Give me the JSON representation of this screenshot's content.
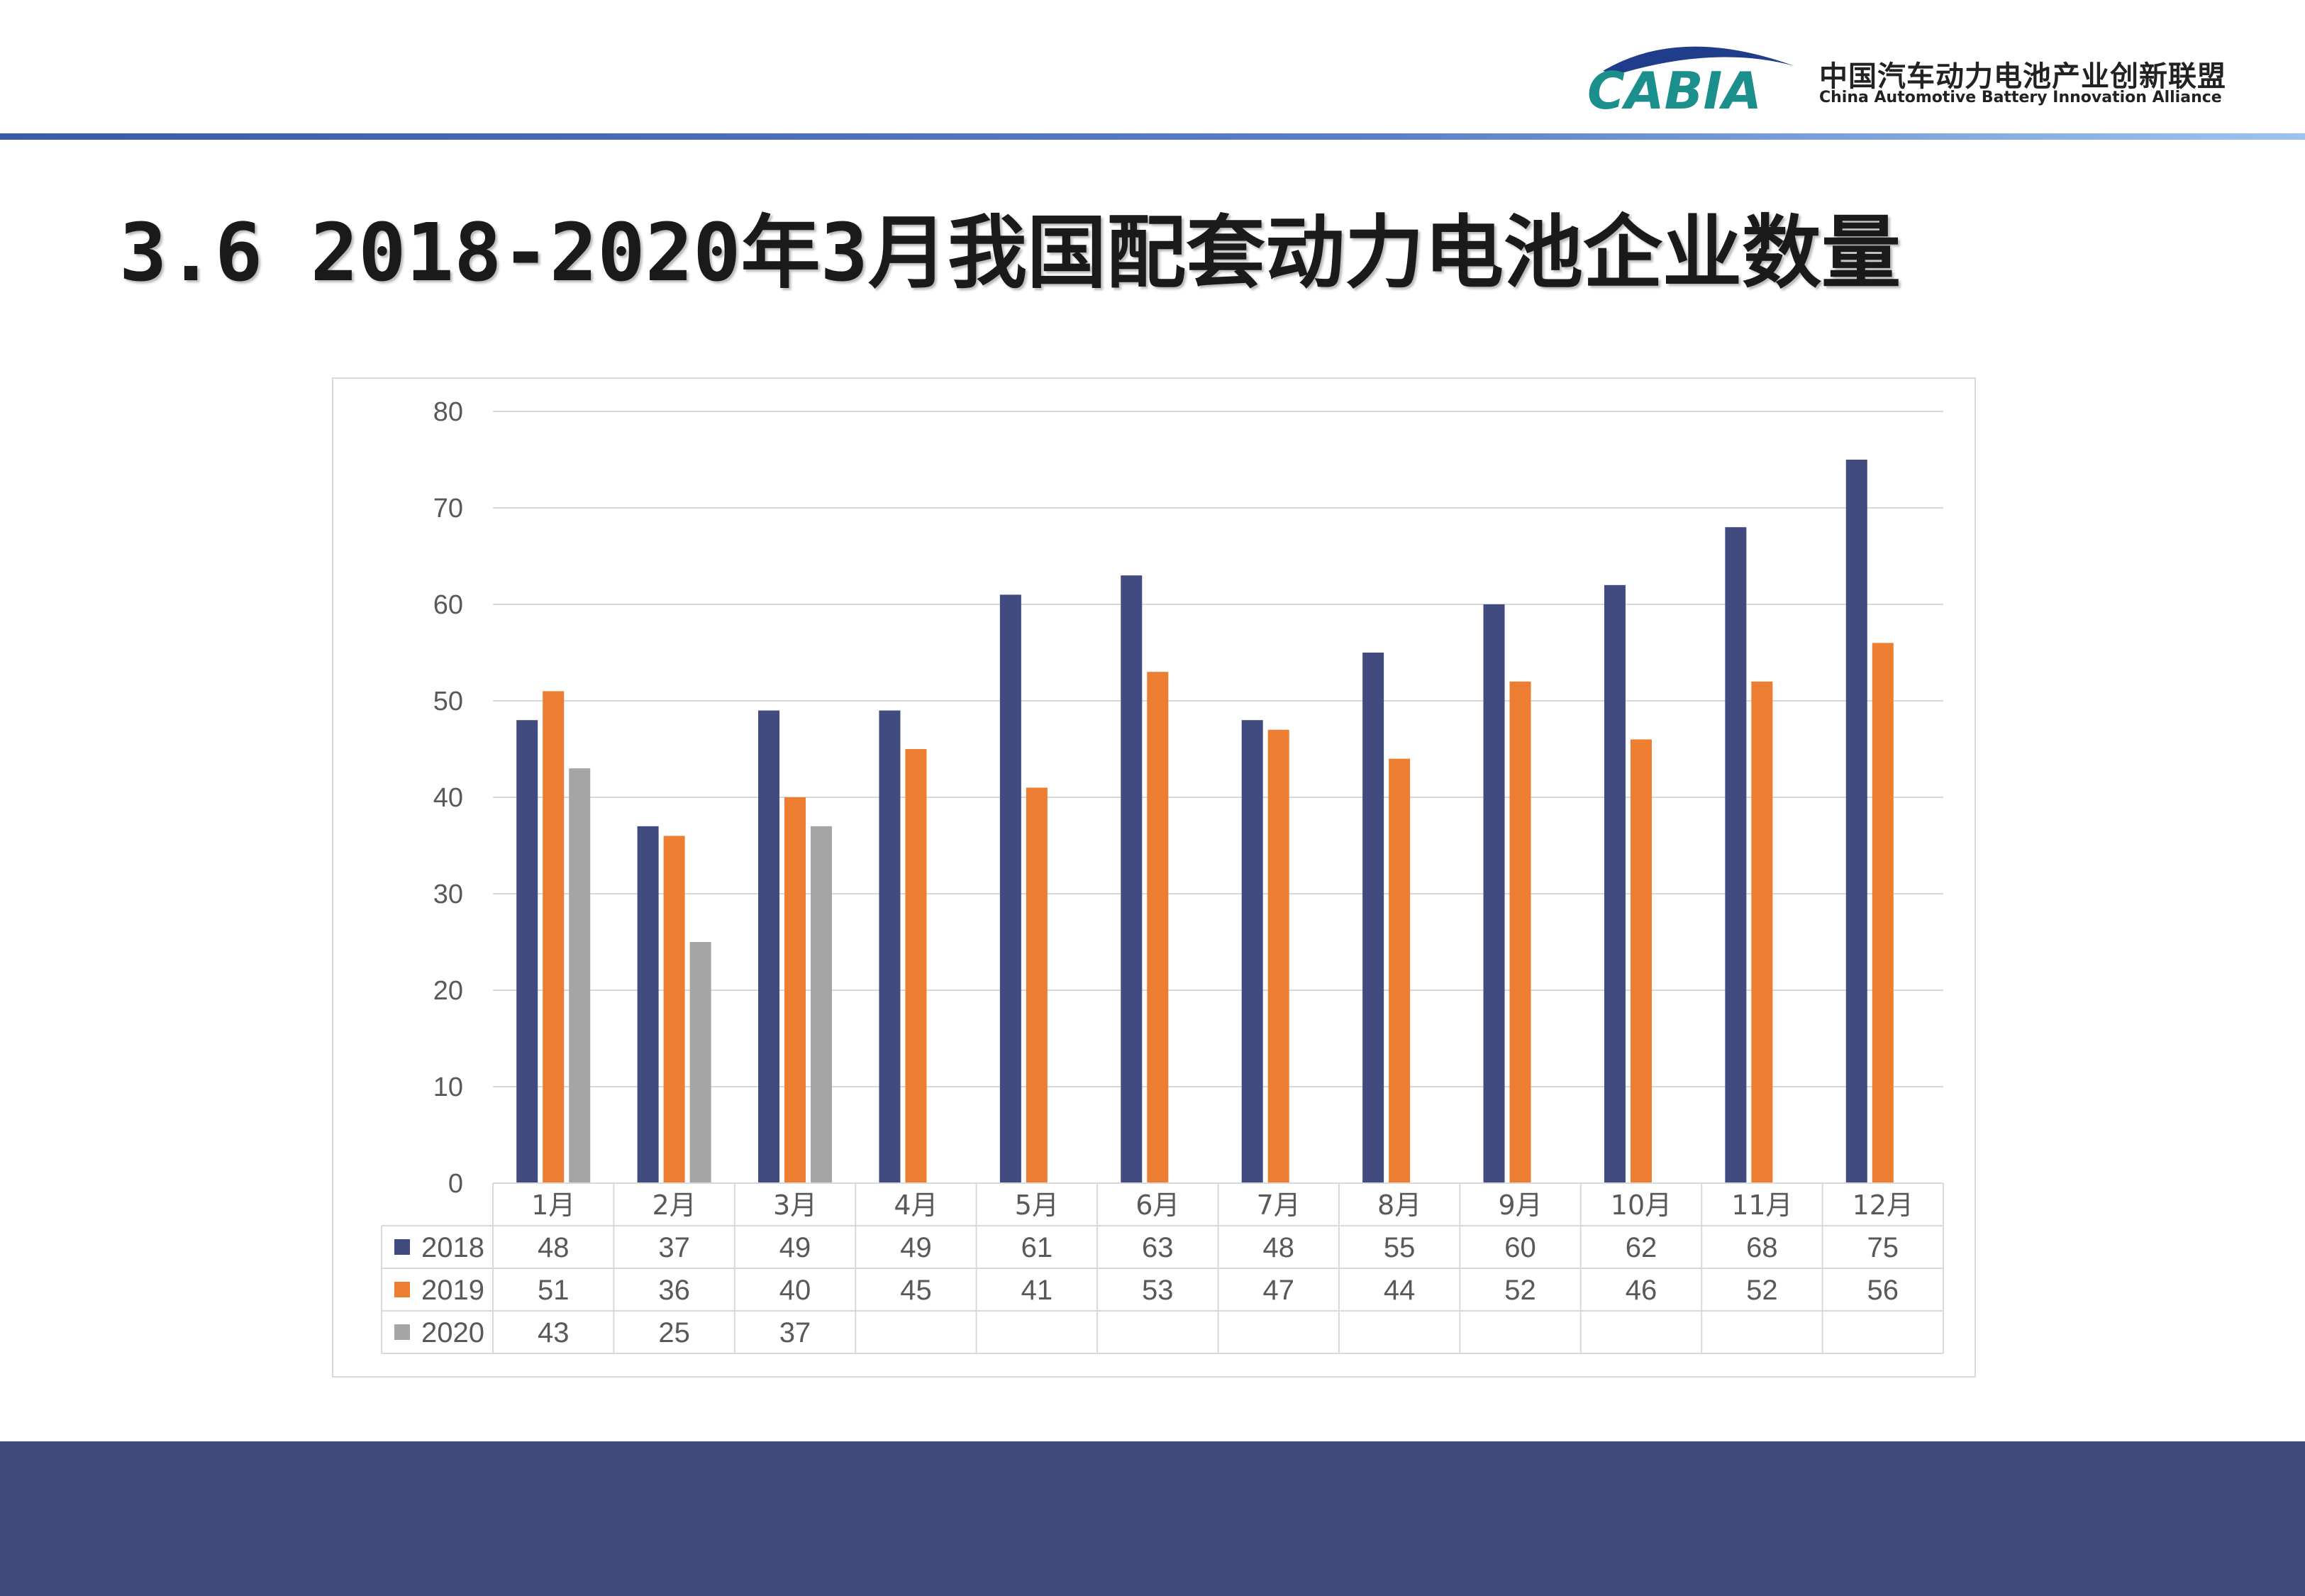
{
  "header": {
    "logo_text": "CABIA",
    "org_name_cn": "中国汽车动力电池产业创新联盟",
    "org_name_en": "China Automotive Battery Innovation Alliance"
  },
  "page": {
    "title": "3.6 2018-2020年3月我国配套动力电池企业数量"
  },
  "colors": {
    "series_2018": "#424b7f",
    "series_2019": "#ed7d31",
    "series_2020": "#a5a5a5",
    "accent_band": "#414b7c",
    "logo_teal": "#1a8f8c",
    "logo_navy": "#1f3d8a"
  },
  "chart_data": {
    "type": "bar",
    "title": "",
    "xlabel": "",
    "ylabel": "",
    "ylim": [
      0,
      80
    ],
    "yticks": [
      0,
      10,
      20,
      30,
      40,
      50,
      60,
      70,
      80
    ],
    "grid": true,
    "legend": "data-table",
    "categories": [
      "1月",
      "2月",
      "3月",
      "4月",
      "5月",
      "6月",
      "7月",
      "8月",
      "9月",
      "10月",
      "11月",
      "12月"
    ],
    "series": [
      {
        "name": "2018",
        "values": [
          48,
          37,
          49,
          49,
          61,
          63,
          48,
          55,
          60,
          62,
          68,
          75
        ]
      },
      {
        "name": "2019",
        "values": [
          51,
          36,
          40,
          45,
          41,
          53,
          47,
          44,
          52,
          46,
          52,
          56
        ]
      },
      {
        "name": "2020",
        "values": [
          43,
          25,
          37,
          null,
          null,
          null,
          null,
          null,
          null,
          null,
          null,
          null
        ]
      }
    ]
  }
}
